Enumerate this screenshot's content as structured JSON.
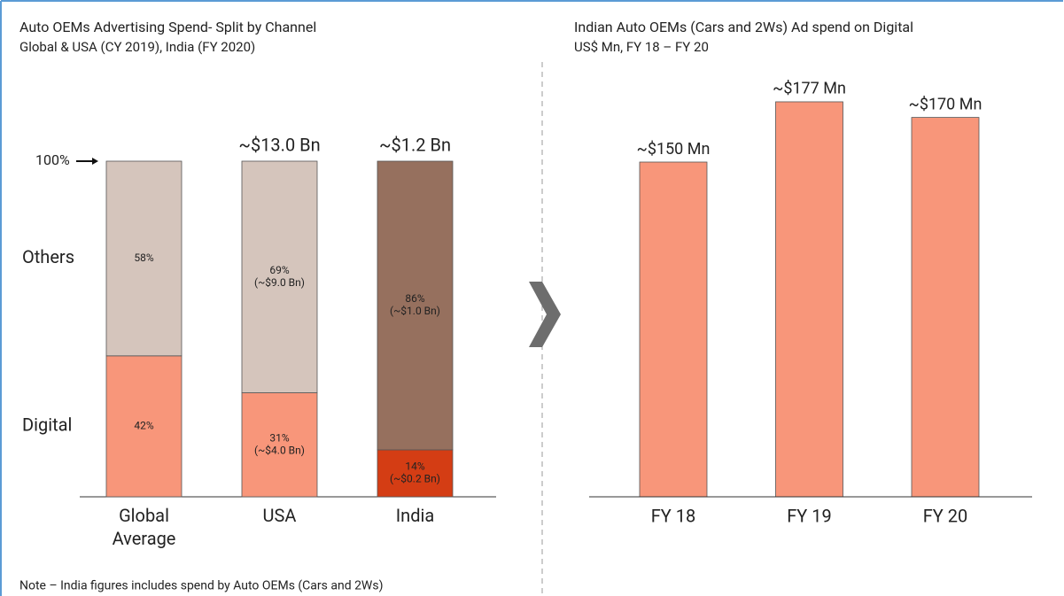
{
  "chart_data": [
    {
      "type": "stacked_bar",
      "title": "Auto OEMs Advertising Spend- Split by Channel",
      "subtitle": "Global & USA (CY 2019), India (FY 2020)",
      "categories": [
        "Global Average",
        "USA",
        "India"
      ],
      "series": [
        {
          "name": "Digital",
          "colors": [
            "#f8967a",
            "#f8967a",
            "#d43d14"
          ],
          "values": [
            42,
            31,
            14
          ],
          "value_labels": [
            "42%",
            "31% (~$4.0 Bn)",
            "14% (~$0.2 Bn)"
          ]
        },
        {
          "name": "Others",
          "colors": [
            "#d5c5bc",
            "#d5c5bc",
            "#96705e"
          ],
          "values": [
            58,
            69,
            86
          ],
          "value_labels": [
            "58%",
            "69% (~$9.0 Bn)",
            "86% (~$1.0 Bn)"
          ]
        }
      ],
      "total_labels": [
        null,
        "~$13.0 Bn",
        "~$1.2 Bn"
      ],
      "ylim": [
        0,
        100
      ],
      "yticks": [
        {
          "value": 100,
          "label": "100%"
        }
      ],
      "note": "Note – India figures includes spend by Auto OEMs (Cars and 2Ws)"
    },
    {
      "type": "bar",
      "title": "Indian Auto OEMs (Cars and 2Ws) Ad spend on Digital",
      "subtitle": "US$ Mn, FY 18 – FY 20",
      "categories": [
        "FY 18",
        "FY 19",
        "FY 20"
      ],
      "values": [
        150,
        177,
        170
      ],
      "value_labels": [
        "~$150 Mn",
        "~$177 Mn",
        "~$170 Mn"
      ],
      "color": "#f8967a",
      "ylim": [
        0,
        200
      ]
    }
  ]
}
